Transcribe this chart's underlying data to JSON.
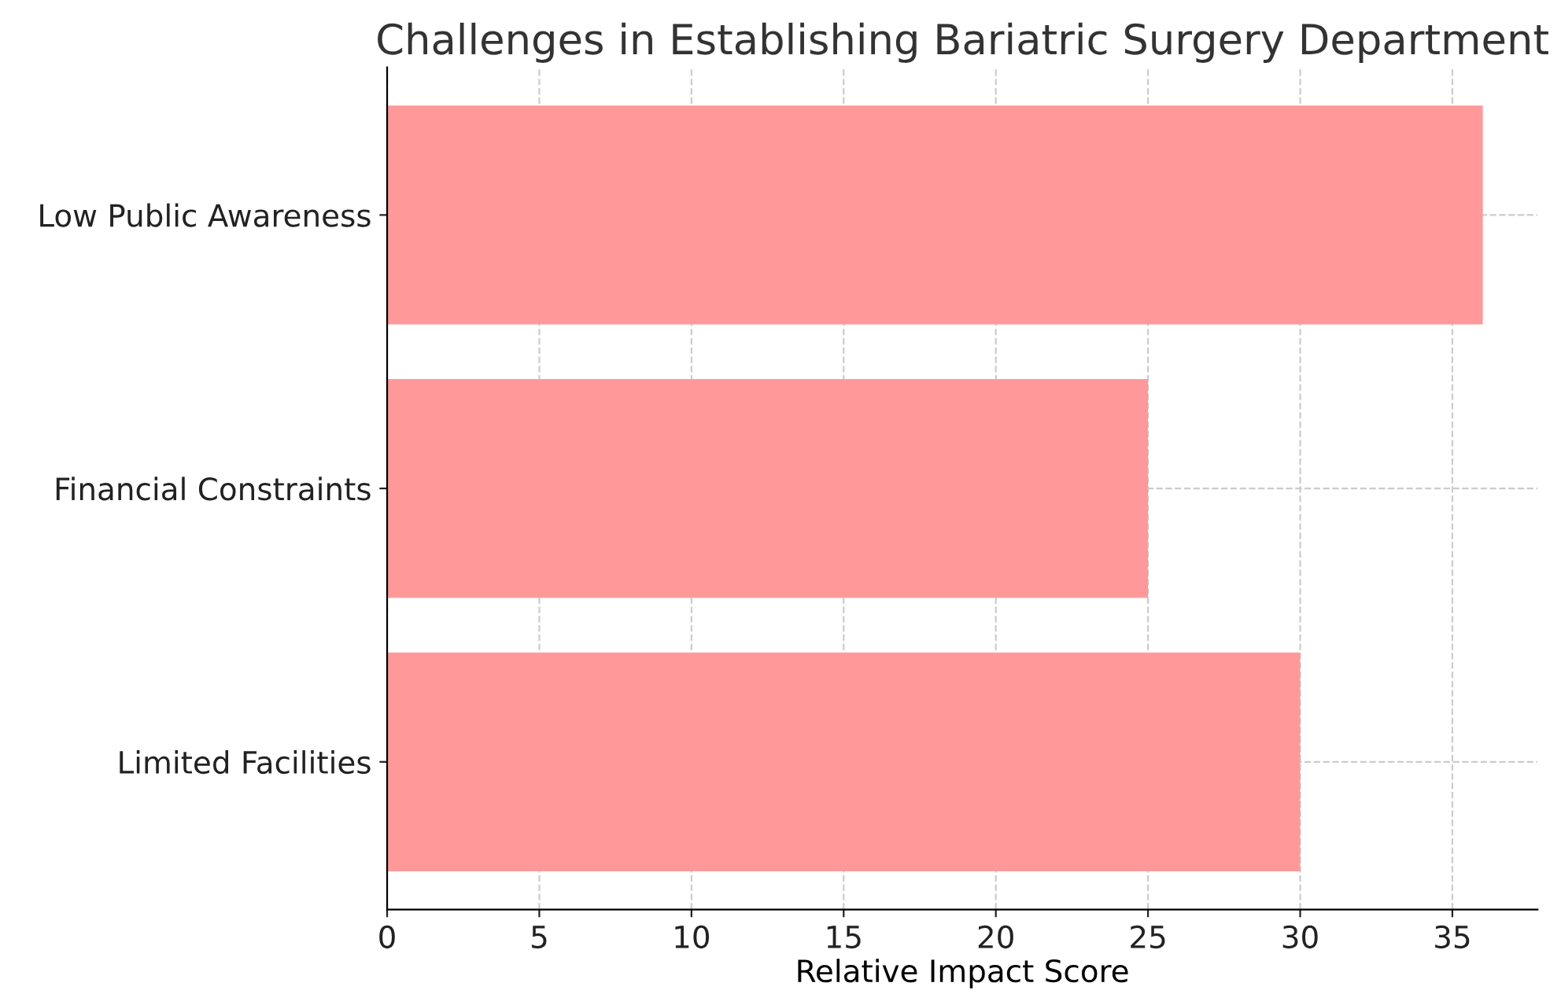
{
  "chart_data": {
    "type": "bar",
    "orientation": "horizontal",
    "title": "Challenges in Establishing Bariatric Surgery Department",
    "xlabel": "Relative Impact Score",
    "categories": [
      "Low Public Awareness",
      "Financial Constraints",
      "Limited Facilities"
    ],
    "values": [
      36,
      25,
      30
    ],
    "color": "#ff9999",
    "xlim": [
      0,
      37.8
    ],
    "xticks": [
      0,
      5,
      10,
      15,
      20,
      25,
      30,
      35
    ],
    "grid": true,
    "line_style": "dashed"
  }
}
